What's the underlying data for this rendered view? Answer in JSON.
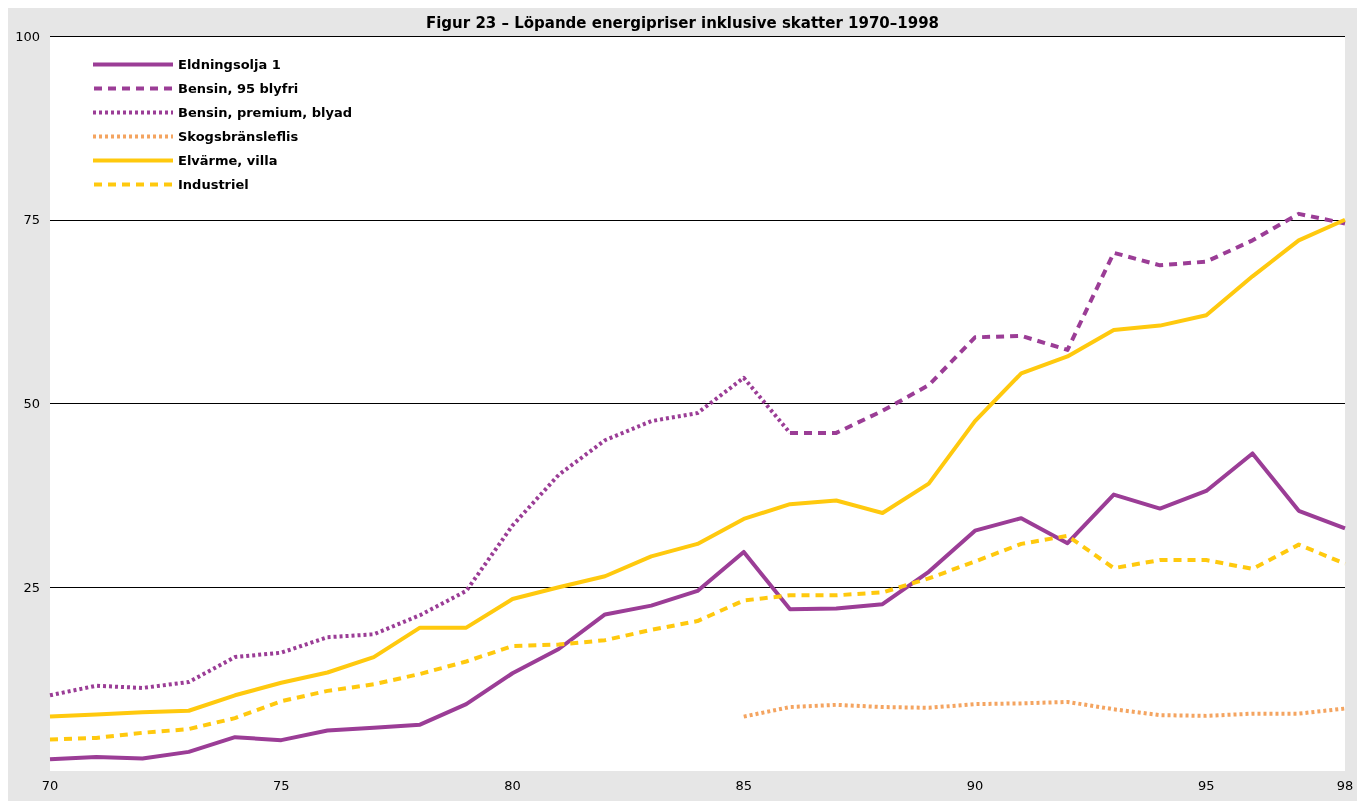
{
  "chart_data": {
    "type": "line",
    "title": "Figur 23 – Löpande energipriser inklusive skatter 1970–1998",
    "xlim": [
      70,
      98
    ],
    "xticks": [
      70,
      75,
      80,
      85,
      90,
      95,
      98
    ],
    "ylim": [
      0,
      100
    ],
    "yticks": [
      25,
      50,
      75,
      100
    ],
    "grid": "y",
    "legend": "top left",
    "marker": "none",
    "series": [
      {
        "name": "Eldningsolja 1",
        "color": "#9b3d96",
        "line_style": "solid",
        "x": [
          70,
          71,
          72,
          73,
          74,
          75,
          76,
          77,
          78,
          79,
          80,
          81,
          82,
          83,
          84,
          85,
          86,
          87,
          88,
          89,
          90,
          91,
          92,
          93,
          94,
          95,
          96,
          97,
          98
        ],
        "values": [
          1.6,
          1.9,
          1.7,
          2.6,
          4.6,
          4.2,
          5.5,
          5.9,
          6.3,
          9.1,
          13.3,
          16.6,
          21.3,
          22.5,
          24.5,
          29.8,
          22,
          22.1,
          22.7,
          27.1,
          32.7,
          34.4,
          31,
          37.6,
          35.7,
          38.1,
          43.2,
          35.4,
          33
        ]
      },
      {
        "name": "Bensin, 95 blyfri",
        "color": "#9b3d96",
        "line_style": "dashed",
        "x": [
          86,
          87,
          88,
          89,
          90,
          91,
          92,
          93,
          94,
          95,
          96,
          97,
          98
        ],
        "values": [
          46,
          46,
          49,
          52.5,
          59,
          59.2,
          57.3,
          70.5,
          68.8,
          69.3,
          72.2,
          75.8,
          74.5
        ]
      },
      {
        "name": "Bensin, premium, blyad",
        "color": "#9b3d96",
        "line_style": "dotted",
        "x": [
          70,
          71,
          72,
          73,
          74,
          75,
          76,
          77,
          78,
          79,
          80,
          81,
          82,
          83,
          84,
          85,
          86
        ],
        "values": [
          10.3,
          11.6,
          11.3,
          12.1,
          15.5,
          16.1,
          18.2,
          18.6,
          21.2,
          24.5,
          33.4,
          40.3,
          45,
          47.6,
          48.7,
          53.5,
          46
        ]
      },
      {
        "name": "Skogsbränsleflis",
        "color": "#f4a460",
        "line_style": "dotted",
        "x": [
          85,
          86,
          87,
          88,
          89,
          90,
          91,
          92,
          93,
          94,
          95,
          96,
          97,
          98
        ],
        "values": [
          7.4,
          8.7,
          9,
          8.7,
          8.6,
          9.1,
          9.2,
          9.4,
          8.4,
          7.6,
          7.5,
          7.8,
          7.8,
          8.5
        ]
      },
      {
        "name": "Elvärme, villa",
        "color": "#ffc90e",
        "line_style": "solid",
        "x": [
          70,
          71,
          72,
          73,
          74,
          75,
          76,
          77,
          78,
          79,
          80,
          81,
          82,
          83,
          84,
          85,
          86,
          87,
          88,
          89,
          90,
          91,
          92,
          93,
          94,
          95,
          96,
          97,
          98
        ],
        "values": [
          7.4,
          7.7,
          8,
          8.2,
          10.3,
          12,
          13.4,
          15.5,
          19.5,
          19.5,
          23.4,
          25,
          26.5,
          29.2,
          30.9,
          34.3,
          36.3,
          36.8,
          35.1,
          39.1,
          47.6,
          54.1,
          56.4,
          60,
          60.6,
          62,
          67.3,
          72.2,
          75
        ]
      },
      {
        "name": "Industriel",
        "color": "#ffc90e",
        "line_style": "dashed",
        "x": [
          70,
          71,
          72,
          73,
          74,
          75,
          76,
          77,
          78,
          79,
          80,
          81,
          82,
          83,
          84,
          85,
          86,
          87,
          88,
          89,
          90,
          91,
          92,
          93,
          94,
          95,
          96,
          97,
          98
        ],
        "values": [
          4.3,
          4.5,
          5.2,
          5.7,
          7.2,
          9.5,
          10.9,
          11.8,
          13.2,
          14.9,
          17,
          17.2,
          17.8,
          19.2,
          20.4,
          23.2,
          23.9,
          23.9,
          24.3,
          26.2,
          28.5,
          30.9,
          32,
          27.6,
          28.7,
          28.7,
          27.5,
          30.8,
          28.2
        ]
      }
    ]
  }
}
